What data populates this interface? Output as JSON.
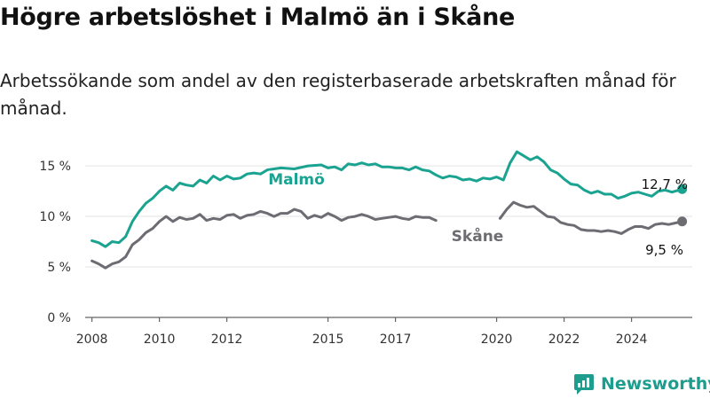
{
  "header": {
    "title": "Högre arbetslöshet i Malmö än i Skåne",
    "subtitle": "Arbetssökande som andel av den registerbaserade arbetskraften månad för månad."
  },
  "brand": {
    "name": "Newsworthy"
  },
  "colors": {
    "malmo": "#1aa391",
    "skane": "#6e6c73",
    "grid": "#e3e3e3",
    "axis": "#666666"
  },
  "chart_data": {
    "type": "line",
    "title": "Högre arbetslöshet i Malmö än i Skåne",
    "xlabel": "",
    "ylabel": "",
    "x_ticks": [
      "2008",
      "2010",
      "2012",
      "2015",
      "2017",
      "2020",
      "2022",
      "2024"
    ],
    "y_ticks": [
      "0 %",
      "5 %",
      "10 %",
      "15 %"
    ],
    "xlim": [
      2007.8,
      2025.8
    ],
    "ylim": [
      0,
      16.5
    ],
    "grid": true,
    "legend": "inline labels",
    "series": [
      {
        "name": "Malmö",
        "end_label": "12,7 %",
        "points": [
          [
            2008.0,
            7.6
          ],
          [
            2008.2,
            7.4
          ],
          [
            2008.4,
            7.0
          ],
          [
            2008.6,
            7.5
          ],
          [
            2008.8,
            7.4
          ],
          [
            2009.0,
            8.0
          ],
          [
            2009.2,
            9.5
          ],
          [
            2009.4,
            10.5
          ],
          [
            2009.6,
            11.3
          ],
          [
            2009.8,
            11.8
          ],
          [
            2010.0,
            12.5
          ],
          [
            2010.2,
            13.0
          ],
          [
            2010.4,
            12.6
          ],
          [
            2010.6,
            13.3
          ],
          [
            2010.8,
            13.1
          ],
          [
            2011.0,
            13.0
          ],
          [
            2011.2,
            13.6
          ],
          [
            2011.4,
            13.3
          ],
          [
            2011.6,
            14.0
          ],
          [
            2011.8,
            13.6
          ],
          [
            2012.0,
            14.0
          ],
          [
            2012.2,
            13.7
          ],
          [
            2012.4,
            13.8
          ],
          [
            2012.6,
            14.2
          ],
          [
            2012.8,
            14.3
          ],
          [
            2013.0,
            14.2
          ],
          [
            2013.2,
            14.6
          ],
          [
            2013.6,
            14.8
          ],
          [
            2014.0,
            14.7
          ],
          [
            2014.4,
            15.0
          ],
          [
            2014.8,
            15.1
          ],
          [
            2015.0,
            14.8
          ],
          [
            2015.2,
            14.9
          ],
          [
            2015.4,
            14.6
          ],
          [
            2015.6,
            15.2
          ],
          [
            2015.8,
            15.1
          ],
          [
            2016.0,
            15.3
          ],
          [
            2016.2,
            15.1
          ],
          [
            2016.4,
            15.2
          ],
          [
            2016.6,
            14.9
          ],
          [
            2016.8,
            14.9
          ],
          [
            2017.0,
            14.8
          ],
          [
            2017.2,
            14.8
          ],
          [
            2017.4,
            14.6
          ],
          [
            2017.6,
            14.9
          ],
          [
            2017.8,
            14.6
          ],
          [
            2018.0,
            14.5
          ],
          [
            2018.2,
            14.1
          ],
          [
            2018.4,
            13.8
          ],
          [
            2018.6,
            14.0
          ],
          [
            2018.8,
            13.9
          ],
          [
            2019.0,
            13.6
          ],
          [
            2019.2,
            13.7
          ],
          [
            2019.4,
            13.5
          ],
          [
            2019.6,
            13.8
          ],
          [
            2019.8,
            13.7
          ],
          [
            2020.0,
            13.9
          ],
          [
            2020.2,
            13.6
          ],
          [
            2020.4,
            15.3
          ],
          [
            2020.6,
            16.4
          ],
          [
            2020.8,
            16.0
          ],
          [
            2021.0,
            15.6
          ],
          [
            2021.2,
            15.9
          ],
          [
            2021.4,
            15.4
          ],
          [
            2021.6,
            14.6
          ],
          [
            2021.8,
            14.3
          ],
          [
            2022.0,
            13.7
          ],
          [
            2022.2,
            13.2
          ],
          [
            2022.4,
            13.1
          ],
          [
            2022.6,
            12.6
          ],
          [
            2022.8,
            12.3
          ],
          [
            2023.0,
            12.5
          ],
          [
            2023.2,
            12.2
          ],
          [
            2023.4,
            12.2
          ],
          [
            2023.6,
            11.8
          ],
          [
            2023.8,
            12.0
          ],
          [
            2024.0,
            12.3
          ],
          [
            2024.2,
            12.4
          ],
          [
            2024.4,
            12.2
          ],
          [
            2024.6,
            12.0
          ],
          [
            2024.8,
            12.5
          ],
          [
            2025.0,
            12.6
          ],
          [
            2025.2,
            12.4
          ],
          [
            2025.5,
            12.7
          ]
        ]
      },
      {
        "name": "Skåne",
        "end_label": "9,5 %",
        "points": [
          [
            2008.0,
            5.6
          ],
          [
            2008.2,
            5.3
          ],
          [
            2008.4,
            4.9
          ],
          [
            2008.6,
            5.3
          ],
          [
            2008.8,
            5.5
          ],
          [
            2009.0,
            6.0
          ],
          [
            2009.2,
            7.2
          ],
          [
            2009.4,
            7.7
          ],
          [
            2009.6,
            8.4
          ],
          [
            2009.8,
            8.8
          ],
          [
            2010.0,
            9.5
          ],
          [
            2010.2,
            10.0
          ],
          [
            2010.4,
            9.5
          ],
          [
            2010.6,
            9.9
          ],
          [
            2010.8,
            9.7
          ],
          [
            2011.0,
            9.8
          ],
          [
            2011.2,
            10.2
          ],
          [
            2011.4,
            9.6
          ],
          [
            2011.6,
            9.8
          ],
          [
            2011.8,
            9.7
          ],
          [
            2012.0,
            10.1
          ],
          [
            2012.2,
            10.2
          ],
          [
            2012.4,
            9.8
          ],
          [
            2012.6,
            10.1
          ],
          [
            2012.8,
            10.2
          ],
          [
            2013.0,
            10.5
          ],
          [
            2013.2,
            10.3
          ],
          [
            2013.4,
            10.0
          ],
          [
            2013.6,
            10.3
          ],
          [
            2013.8,
            10.3
          ],
          [
            2014.0,
            10.7
          ],
          [
            2014.2,
            10.5
          ],
          [
            2014.4,
            9.8
          ],
          [
            2014.6,
            10.1
          ],
          [
            2014.8,
            9.9
          ],
          [
            2015.0,
            10.3
          ],
          [
            2015.2,
            10.0
          ],
          [
            2015.4,
            9.6
          ],
          [
            2015.6,
            9.9
          ],
          [
            2015.8,
            10.0
          ],
          [
            2016.0,
            10.2
          ],
          [
            2016.2,
            10.0
          ],
          [
            2016.4,
            9.7
          ],
          [
            2016.6,
            9.8
          ],
          [
            2016.8,
            9.9
          ],
          [
            2017.0,
            10.0
          ],
          [
            2017.2,
            9.8
          ],
          [
            2017.4,
            9.7
          ],
          [
            2017.6,
            10.0
          ],
          [
            2017.8,
            9.9
          ],
          [
            2018.0,
            9.9
          ],
          [
            2018.2,
            9.6
          ],
          [
            2020.1,
            9.8
          ],
          [
            2020.3,
            10.7
          ],
          [
            2020.5,
            11.4
          ],
          [
            2020.7,
            11.1
          ],
          [
            2020.9,
            10.9
          ],
          [
            2021.1,
            11.0
          ],
          [
            2021.3,
            10.5
          ],
          [
            2021.5,
            10.0
          ],
          [
            2021.7,
            9.9
          ],
          [
            2021.9,
            9.4
          ],
          [
            2022.1,
            9.2
          ],
          [
            2022.3,
            9.1
          ],
          [
            2022.5,
            8.7
          ],
          [
            2022.7,
            8.6
          ],
          [
            2022.9,
            8.6
          ],
          [
            2023.1,
            8.5
          ],
          [
            2023.3,
            8.6
          ],
          [
            2023.5,
            8.5
          ],
          [
            2023.7,
            8.3
          ],
          [
            2023.9,
            8.7
          ],
          [
            2024.1,
            9.0
          ],
          [
            2024.3,
            9.0
          ],
          [
            2024.5,
            8.8
          ],
          [
            2024.7,
            9.2
          ],
          [
            2024.9,
            9.3
          ],
          [
            2025.1,
            9.2
          ],
          [
            2025.5,
            9.5
          ]
        ]
      }
    ]
  }
}
